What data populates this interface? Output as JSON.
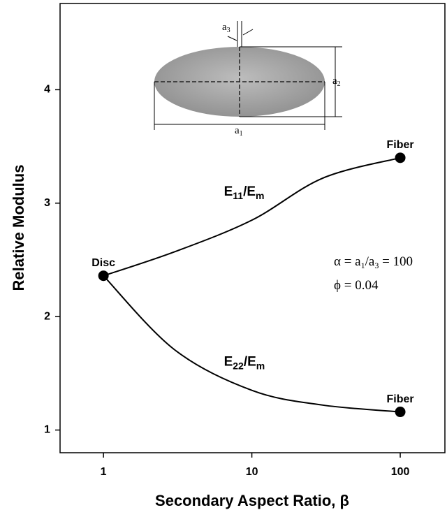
{
  "chart_data": {
    "type": "line",
    "xlabel": "Secondary Aspect Ratio, β",
    "ylabel": "Relative Modulus",
    "xscale": "log",
    "xlim": [
      0.51,
      200
    ],
    "xticks": [
      1,
      10,
      100
    ],
    "ylim": [
      0.8,
      4.76
    ],
    "yticks": [
      1,
      2,
      3,
      4
    ],
    "x": [
      1,
      3,
      10,
      30,
      100
    ],
    "series": [
      {
        "name_parts": [
          "E",
          "11",
          "/E",
          "m"
        ],
        "color": "#000000",
        "values": [
          2.36,
          2.57,
          2.85,
          3.22,
          3.4
        ],
        "point_labels": [
          "Disc",
          null,
          null,
          null,
          "Fiber"
        ]
      },
      {
        "name_parts": [
          "E",
          "22",
          "/E",
          "m"
        ],
        "color": "#000000",
        "values": [
          2.36,
          1.71,
          1.35,
          1.22,
          1.16
        ],
        "point_labels": [
          null,
          null,
          null,
          null,
          "Fiber"
        ]
      }
    ],
    "annotations": [
      [
        "α = a",
        "1",
        "/a",
        "3",
        " = 100"
      ],
      [
        "ϕ = 0.04"
      ]
    ],
    "inset_labels": [
      [
        "a",
        "1"
      ],
      [
        "a",
        "2"
      ],
      [
        "a",
        "3"
      ]
    ]
  }
}
